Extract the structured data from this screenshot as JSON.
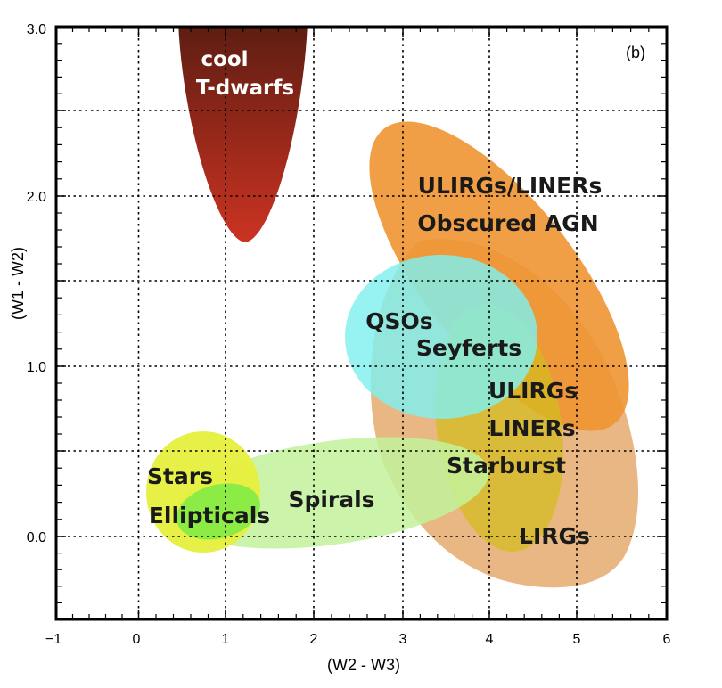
{
  "chart_data": {
    "type": "region-map",
    "panel_label": "(b)",
    "xlabel": "(W2 - W3)",
    "ylabel": "(W1 - W2)",
    "xlim": [
      -1,
      6
    ],
    "ylim": [
      -0.5,
      3.0
    ],
    "x_ticks": [
      "−1",
      "0",
      "1",
      "2",
      "3",
      "4",
      "5",
      "6"
    ],
    "y_ticks": [
      "0.0",
      "1.0",
      "2.0",
      "3.0"
    ],
    "grid": true,
    "regions": [
      {
        "label": "cool\nT-dwarfs",
        "color": "#8b2a14",
        "x_range": [
          0.5,
          1.95
        ],
        "y_range": [
          1.72,
          3.0
        ]
      },
      {
        "label": "ULIRGs/LINERs\nObscured AGN",
        "color": "#ee9430",
        "x_range": [
          2.4,
          5.7
        ],
        "y_range": [
          0.5,
          2.6
        ]
      },
      {
        "label": "LIRGs",
        "color": "#e8b27a",
        "x_range": [
          2.6,
          5.6
        ],
        "y_range": [
          -0.3,
          1.8
        ]
      },
      {
        "label": "ULIRGs\nLINERs\nStarburst",
        "color": "#d5b91c",
        "x_range": [
          3.5,
          5.0
        ],
        "y_range": [
          -0.1,
          1.35
        ]
      },
      {
        "label": "QSOs\nSeyferts",
        "color": "#7ff0ee",
        "x_range": [
          2.3,
          4.5
        ],
        "y_range": [
          0.7,
          1.8
        ]
      },
      {
        "label": "Spirals",
        "color": "#c4f29a",
        "x_range": [
          0.7,
          4.6
        ],
        "y_range": [
          -0.05,
          0.6
        ]
      },
      {
        "label": "Stars\nElliptic als",
        "color": "#e7f03c",
        "x_range": [
          0.1,
          1.4
        ],
        "y_range": [
          -0.1,
          0.6
        ]
      }
    ],
    "labels": {
      "cool": "cool",
      "tdwarfs": "T-dwarfs",
      "ulirgs_liners": "ULIRGs/LINERs",
      "obscured_agn": "Obscured AGN",
      "qsos": "QSOs",
      "seyferts": "Seyferts",
      "ulirgs": "ULIRGs",
      "liners": "LINERs",
      "starburst": "Starburst",
      "lirgs": "LIRGs",
      "spirals": "Spirals",
      "stars": "Stars",
      "ellipticals": "Ellipticals"
    }
  }
}
